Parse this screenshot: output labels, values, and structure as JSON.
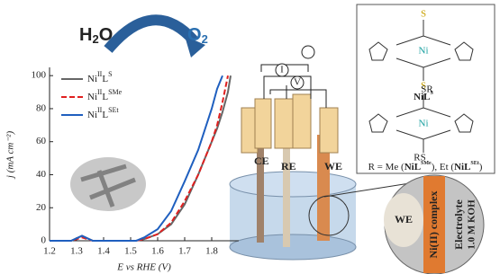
{
  "chart_data": {
    "type": "line",
    "reaction": {
      "reactant": [
        "H",
        "2",
        "O"
      ],
      "product": [
        "O",
        "2"
      ]
    },
    "x_label": "E vs RHE (V)",
    "y_label": "j (mA cm⁻²)",
    "x": [
      1.2,
      1.28,
      1.32,
      1.36,
      1.45,
      1.52,
      1.55,
      1.6,
      1.65,
      1.7,
      1.75,
      1.8,
      1.82,
      1.84,
      1.86,
      1.87
    ],
    "series": [
      {
        "name": [
          "Ni",
          "II",
          "L",
          "S"
        ],
        "color": "#666666",
        "dash": false,
        "values": [
          0,
          0,
          3,
          0,
          0,
          0,
          1,
          4,
          10,
          22,
          40,
          60,
          68,
          78,
          90,
          100
        ]
      },
      {
        "name": [
          "Ni",
          "II",
          "L",
          "SMe"
        ],
        "color": "#e02020",
        "dash": true,
        "values": [
          0,
          0,
          2,
          0,
          0,
          0,
          1,
          4,
          11,
          24,
          40,
          60,
          70,
          84,
          100,
          null
        ]
      },
      {
        "name": [
          "Ni",
          "II",
          "L",
          "SEt"
        ],
        "color": "#1f5fbf",
        "dash": false,
        "values": [
          0,
          0,
          3,
          0,
          0,
          0,
          2,
          7,
          18,
          36,
          55,
          80,
          92,
          100,
          null,
          null
        ]
      }
    ],
    "xlim": [
      1.2,
      1.9
    ],
    "ylim": [
      0,
      105
    ],
    "xticks": [
      1.2,
      1.3,
      1.4,
      1.5,
      1.6,
      1.7,
      1.8
    ],
    "yticks": [
      0,
      20,
      40,
      60,
      80,
      100
    ]
  },
  "diagram": {
    "meters": [
      "I",
      "V"
    ],
    "electrodes": [
      "CE",
      "RE",
      "WE"
    ],
    "zoom": {
      "electrode": "WE",
      "layer": "Ni(II) complex",
      "electrolyte": "Electrolyte",
      "concentration": "1.0 M KOH"
    },
    "molecule_1": {
      "atoms": [
        "Ni",
        "S",
        "S"
      ],
      "name": [
        "NiL",
        "S"
      ]
    },
    "molecule_2": {
      "atoms": [
        "Ni",
        "SR",
        "RS"
      ]
    },
    "substituents": [
      "R = Me (",
      "NiL",
      "SMe",
      "), Et (",
      "NiL",
      "SEt",
      ")"
    ]
  }
}
